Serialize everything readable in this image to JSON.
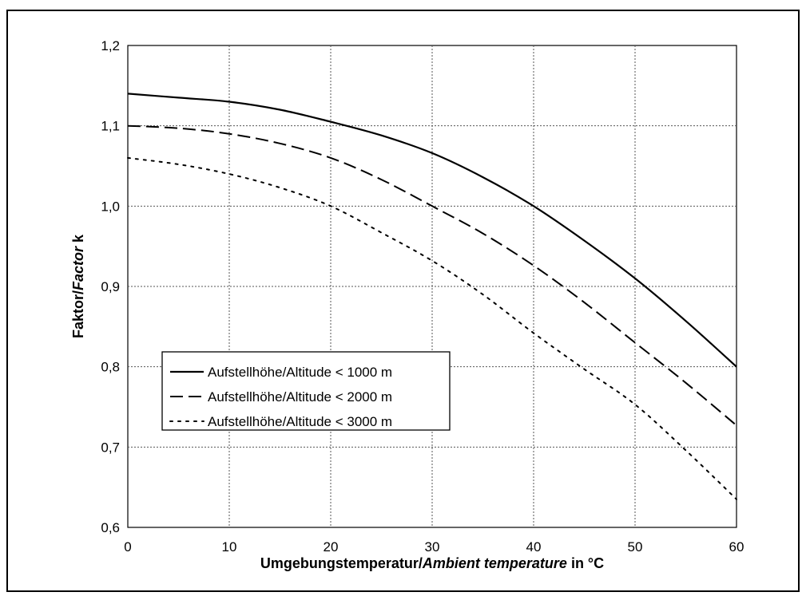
{
  "chart_data": {
    "type": "line",
    "xlabel": {
      "normal": "Umgebungstemperatur/",
      "italic": "Ambient temperature",
      "suffix": " in °C"
    },
    "ylabel": {
      "normal": "Faktor/",
      "italic": "Factor",
      "suffix": " k"
    },
    "xlim": [
      0,
      60
    ],
    "ylim": [
      0.6,
      1.2
    ],
    "x_ticks": [
      "0",
      "10",
      "20",
      "30",
      "40",
      "50",
      "60"
    ],
    "y_ticks": [
      "0,6",
      "0,7",
      "0,8",
      "0,9",
      "1,0",
      "1,1",
      "1,2"
    ],
    "grid": true,
    "legend_position": "lower-left",
    "series": [
      {
        "name": "Aufstellhöhe/Altitude < 1000 m",
        "style": "solid",
        "x": [
          0,
          5,
          10,
          15,
          20,
          25,
          30,
          35,
          40,
          45,
          50,
          55,
          60
        ],
        "y": [
          1.14,
          1.135,
          1.13,
          1.12,
          1.105,
          1.088,
          1.066,
          1.036,
          1.0,
          0.957,
          0.91,
          0.857,
          0.8
        ]
      },
      {
        "name": "Aufstellhöhe/Altitude < 2000 m",
        "style": "dashed",
        "x": [
          0,
          5,
          10,
          15,
          20,
          25,
          30,
          35,
          40,
          45,
          50,
          55,
          60
        ],
        "y": [
          1.1,
          1.097,
          1.09,
          1.078,
          1.06,
          1.033,
          1.0,
          0.966,
          0.926,
          0.88,
          0.83,
          0.78,
          0.727
        ]
      },
      {
        "name": "Aufstellhöhe/Altitude < 3000 m",
        "style": "dotted",
        "x": [
          0,
          5,
          10,
          15,
          20,
          25,
          30,
          35,
          40,
          45,
          50,
          55,
          60
        ],
        "y": [
          1.06,
          1.052,
          1.04,
          1.023,
          1.0,
          0.967,
          0.932,
          0.89,
          0.842,
          0.797,
          0.753,
          0.696,
          0.635
        ]
      }
    ]
  }
}
